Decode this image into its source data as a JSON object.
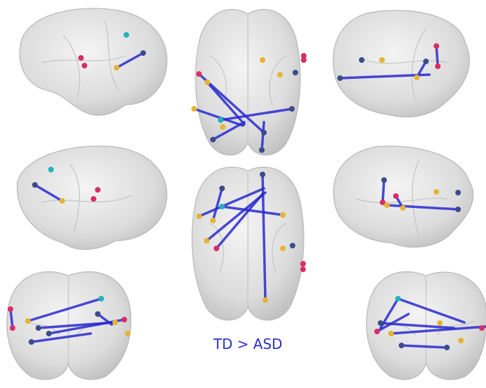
{
  "label": "TD > ASD"
}
